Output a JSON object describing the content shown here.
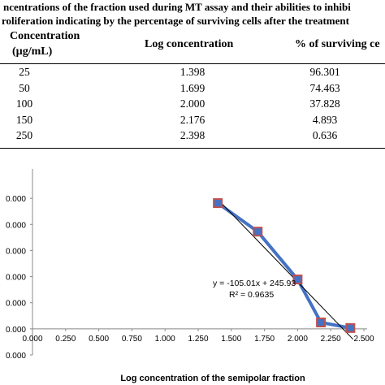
{
  "caption": {
    "line1": "ncentrations of the fraction used during MT assay and their abilities  to inhibi",
    "line2": "roliferation indicating by the percentage of surviving cells after the treatment"
  },
  "table": {
    "headers": [
      "Concentration",
      "(µg/mL)",
      "Log concentration",
      "% of surviving ce"
    ],
    "rows": [
      [
        "25",
        "1.398",
        "96.301"
      ],
      [
        "50",
        "1.699",
        "74.463"
      ],
      [
        "100",
        "2.000",
        "37.828"
      ],
      [
        "150",
        "2.176",
        "4.893"
      ],
      [
        "250",
        "2.398",
        "0.636"
      ]
    ]
  },
  "chart_data": {
    "type": "scatter",
    "xlabel": "Log concentration of the semipolar fraction",
    "ylabel": "",
    "xlim": [
      0,
      2.5
    ],
    "ylim": [
      -20,
      120
    ],
    "x_tick_labels": [
      "0.000",
      "0.250",
      "0.500",
      "0.750",
      "1.000",
      "1.250",
      "1.500",
      "1.750",
      "2.000",
      "2.250",
      "2.500"
    ],
    "y_tick_labels": [
      {
        "value": 100,
        "label": "0.000"
      },
      {
        "value": 80,
        "label": "0.000"
      },
      {
        "value": 60,
        "label": "0.000"
      },
      {
        "value": 40,
        "label": "0.000"
      },
      {
        "value": 20,
        "label": "0.000"
      },
      {
        "value": 0,
        "label": "0.000"
      },
      {
        "value": -20,
        "label": "0.000"
      }
    ],
    "series": [
      {
        "values": [
          {
            "x": 1.398,
            "y": 96.301
          },
          {
            "x": 1.699,
            "y": 74.463
          },
          {
            "x": 2.0,
            "y": 37.828
          },
          {
            "x": 2.176,
            "y": 4.893
          },
          {
            "x": 2.398,
            "y": 0.636
          }
        ],
        "line_color": "#4472c4",
        "marker_color": "#c0504d"
      }
    ],
    "trendline": {
      "slope": -105.01,
      "intercept": 245.93,
      "equation": "y = -105.01x + 245.93",
      "r_squared": "R² = 0.9635",
      "color": "#000000"
    }
  }
}
